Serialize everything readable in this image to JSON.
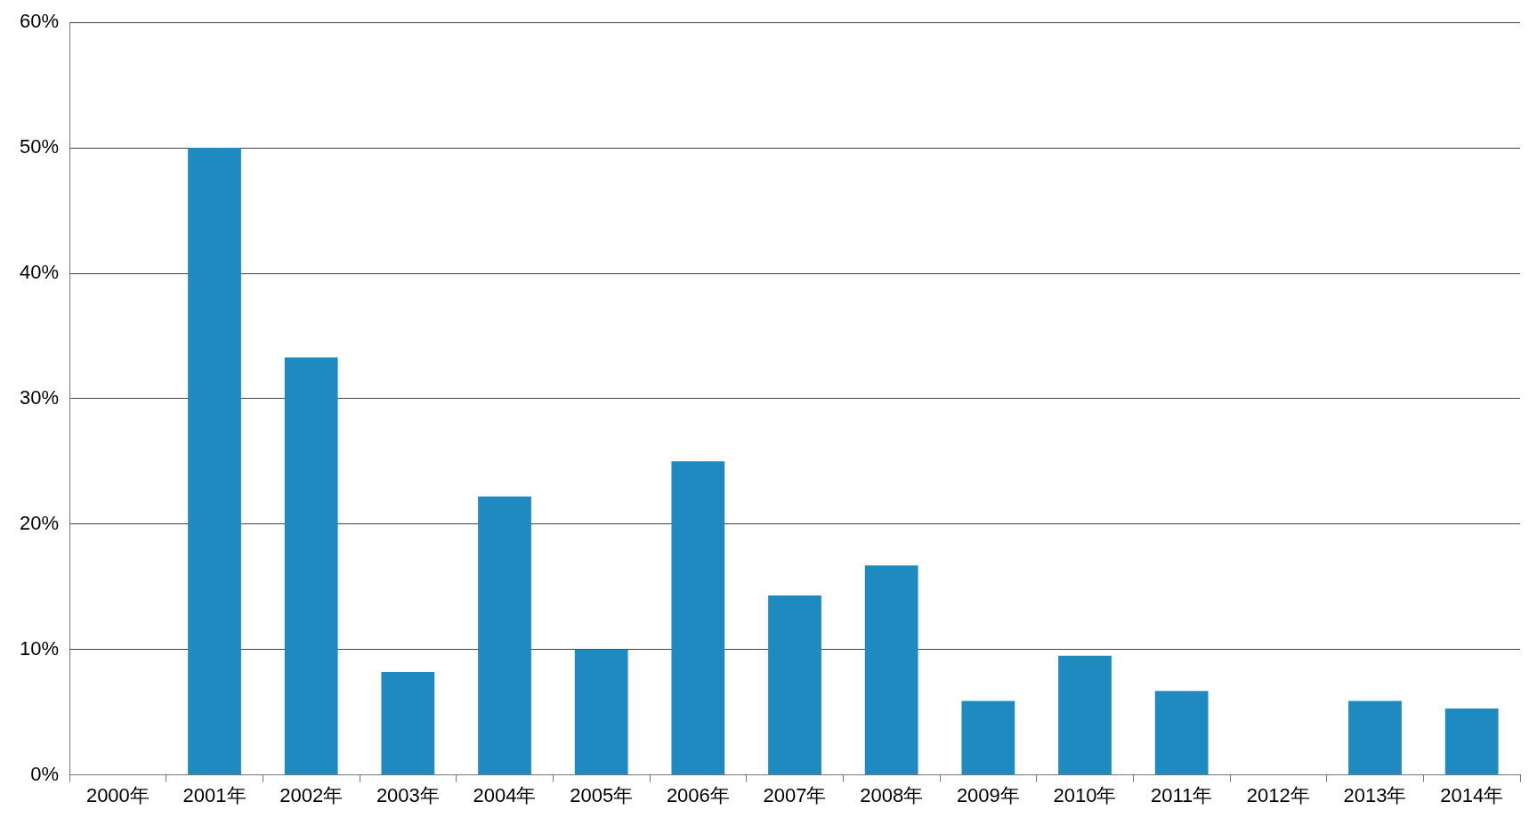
{
  "chart_data": {
    "type": "bar",
    "categories": [
      "2000年",
      "2001年",
      "2002年",
      "2003年",
      "2004年",
      "2005年",
      "2006年",
      "2007年",
      "2008年",
      "2009年",
      "2010年",
      "2011年",
      "2012年",
      "2013年",
      "2014年"
    ],
    "values": [
      0,
      50,
      33.3,
      8.2,
      22.2,
      10,
      25,
      14.3,
      16.7,
      5.9,
      9.5,
      6.7,
      0,
      5.9,
      5.3
    ],
    "color": "#1f8ac0",
    "ylim": [
      0,
      60
    ],
    "yticks": [
      {
        "value": 0,
        "label": "0%"
      },
      {
        "value": 10,
        "label": "10%"
      },
      {
        "value": 20,
        "label": "20%"
      },
      {
        "value": 30,
        "label": "30%"
      },
      {
        "value": 40,
        "label": "40%"
      },
      {
        "value": 50,
        "label": "50%"
      },
      {
        "value": 60,
        "label": "60%"
      }
    ],
    "grid": "y"
  }
}
